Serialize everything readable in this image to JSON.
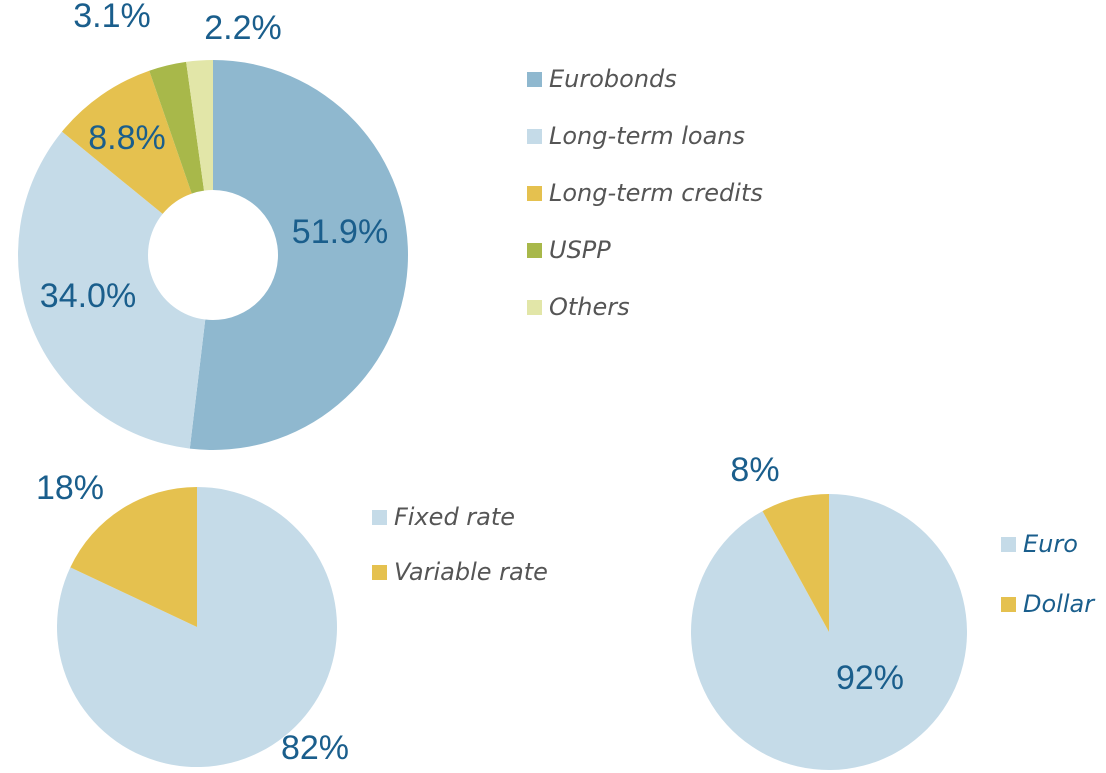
{
  "chart_data": [
    {
      "type": "donut",
      "categories": [
        "Eurobonds",
        "Long-term loans",
        "Long-term credits",
        "USPP",
        "Others"
      ],
      "values": [
        51.9,
        34.0,
        8.8,
        3.1,
        2.2
      ],
      "value_labels": [
        "51.9%",
        "34.0%",
        "8.8%",
        "3.1%",
        "2.2%"
      ],
      "colors": [
        "#8fb8cf",
        "#c5dbe8",
        "#e5c14f",
        "#a8b84a",
        "#e2e6a8"
      ]
    },
    {
      "type": "pie",
      "categories": [
        "Fixed rate",
        "Variable rate"
      ],
      "values": [
        82,
        18
      ],
      "value_labels": [
        "82%",
        "18%"
      ],
      "colors": [
        "#c5dbe8",
        "#e5c14f"
      ]
    },
    {
      "type": "pie",
      "categories": [
        "Euro",
        "Dollar"
      ],
      "values": [
        92,
        8
      ],
      "value_labels": [
        "92%",
        "8%"
      ],
      "colors": [
        "#c5dbe8",
        "#e5c14f"
      ]
    }
  ]
}
